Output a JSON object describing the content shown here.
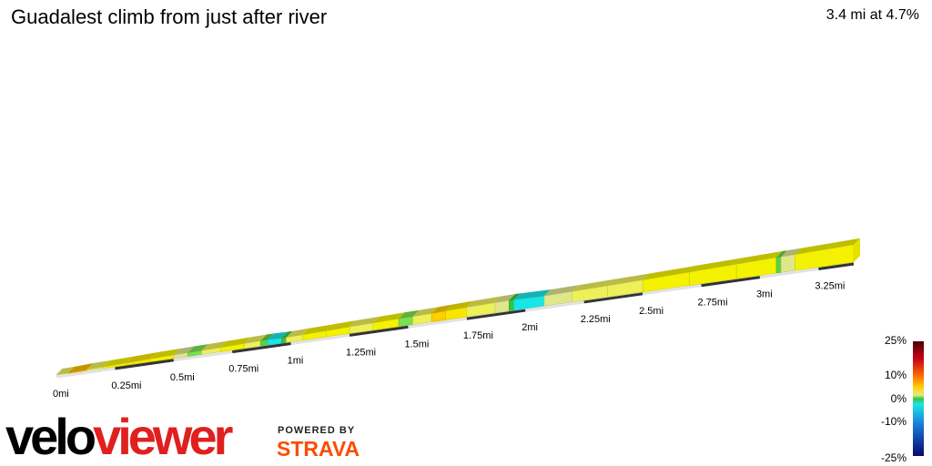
{
  "header": {
    "title": "Guadalest climb from just after river",
    "summary": "3.4 mi at 4.7%"
  },
  "logo": {
    "velo": "velo",
    "viewer": "viewer"
  },
  "powered": {
    "line1": "POWERED BY",
    "line2": "STRAVA"
  },
  "gradient_scale": {
    "labels": [
      "25%",
      "10%",
      "0%",
      "-10%",
      "-25%"
    ],
    "values": [
      25,
      10,
      0,
      -10,
      -25
    ]
  },
  "chart_data": {
    "type": "area",
    "title": "Guadalest climb from just after river",
    "xlabel": "",
    "ylabel": "",
    "x_unit": "mi",
    "xlim": [
      0,
      3.4
    ],
    "x_ticks": [
      {
        "value": 0,
        "label": "0mi"
      },
      {
        "value": 0.25,
        "label": "0.25mi"
      },
      {
        "value": 0.5,
        "label": "0.5mi"
      },
      {
        "value": 0.75,
        "label": "0.75mi"
      },
      {
        "value": 1,
        "label": "1mi"
      },
      {
        "value": 1.25,
        "label": "1.25mi"
      },
      {
        "value": 1.5,
        "label": "1.5mi"
      },
      {
        "value": 1.75,
        "label": "1.75mi"
      },
      {
        "value": 2,
        "label": "2mi"
      },
      {
        "value": 2.25,
        "label": "2.25mi"
      },
      {
        "value": 2.5,
        "label": "2.5mi"
      },
      {
        "value": 2.75,
        "label": "2.75mi"
      },
      {
        "value": 3,
        "label": "3mi"
      },
      {
        "value": 3.25,
        "label": "3.25mi"
      }
    ],
    "segments": [
      {
        "start": 0.0,
        "end": 0.05,
        "gradient": 5
      },
      {
        "start": 0.05,
        "end": 0.13,
        "gradient": 10
      },
      {
        "start": 0.13,
        "end": 0.2,
        "gradient": 5
      },
      {
        "start": 0.2,
        "end": 0.3,
        "gradient": 6
      },
      {
        "start": 0.3,
        "end": 0.4,
        "gradient": 7
      },
      {
        "start": 0.4,
        "end": 0.5,
        "gradient": 6
      },
      {
        "start": 0.5,
        "end": 0.56,
        "gradient": 4
      },
      {
        "start": 0.56,
        "end": 0.62,
        "gradient": 2
      },
      {
        "start": 0.62,
        "end": 0.7,
        "gradient": 5
      },
      {
        "start": 0.7,
        "end": 0.8,
        "gradient": 6
      },
      {
        "start": 0.8,
        "end": 0.87,
        "gradient": 5
      },
      {
        "start": 0.87,
        "end": 0.9,
        "gradient": 1
      },
      {
        "start": 0.9,
        "end": 0.96,
        "gradient": -4
      },
      {
        "start": 0.96,
        "end": 0.98,
        "gradient": 0
      },
      {
        "start": 0.98,
        "end": 1.05,
        "gradient": 5
      },
      {
        "start": 1.05,
        "end": 1.15,
        "gradient": 6
      },
      {
        "start": 1.15,
        "end": 1.25,
        "gradient": 6
      },
      {
        "start": 1.25,
        "end": 1.35,
        "gradient": 5
      },
      {
        "start": 1.35,
        "end": 1.46,
        "gradient": 6
      },
      {
        "start": 1.46,
        "end": 1.52,
        "gradient": 2
      },
      {
        "start": 1.52,
        "end": 1.6,
        "gradient": 5
      },
      {
        "start": 1.6,
        "end": 1.66,
        "gradient": 9
      },
      {
        "start": 1.66,
        "end": 1.75,
        "gradient": 7
      },
      {
        "start": 1.75,
        "end": 1.87,
        "gradient": 5
      },
      {
        "start": 1.87,
        "end": 1.93,
        "gradient": 4
      },
      {
        "start": 1.93,
        "end": 1.95,
        "gradient": 0
      },
      {
        "start": 1.95,
        "end": 2.08,
        "gradient": -4
      },
      {
        "start": 2.08,
        "end": 2.2,
        "gradient": 4
      },
      {
        "start": 2.2,
        "end": 2.35,
        "gradient": 5
      },
      {
        "start": 2.35,
        "end": 2.5,
        "gradient": 5
      },
      {
        "start": 2.5,
        "end": 2.7,
        "gradient": 6
      },
      {
        "start": 2.7,
        "end": 2.9,
        "gradient": 6
      },
      {
        "start": 2.9,
        "end": 3.07,
        "gradient": 6
      },
      {
        "start": 3.07,
        "end": 3.09,
        "gradient": 1
      },
      {
        "start": 3.09,
        "end": 3.15,
        "gradient": 4
      },
      {
        "start": 3.15,
        "end": 3.4,
        "gradient": 6
      }
    ]
  }
}
